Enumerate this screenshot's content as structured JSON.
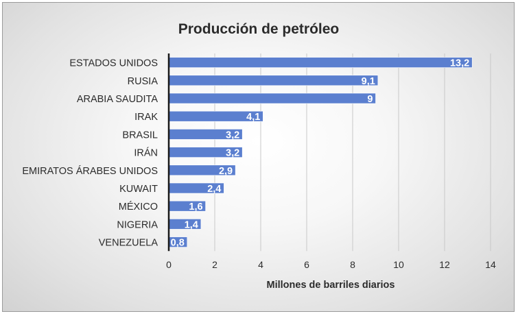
{
  "chart_data": {
    "type": "bar",
    "orientation": "horizontal",
    "title": "Producción de petróleo",
    "xlabel": "Millones de barriles diarios",
    "ylabel": "",
    "categories": [
      "ESTADOS UNIDOS",
      "RUSIA",
      "ARABIA SAUDITA",
      "IRAK",
      "BRASIL",
      "IRÁN",
      "EMIRATOS ÁRABES UNIDOS",
      "KUWAIT",
      "MÉXICO",
      "NIGERIA",
      "VENEZUELA"
    ],
    "values": [
      13.2,
      9.1,
      9,
      4.1,
      3.2,
      3.2,
      2.9,
      2.4,
      1.6,
      1.4,
      0.8
    ],
    "data_labels": [
      "13,2",
      "9,1",
      "9",
      "4,1",
      "3,2",
      "3,2",
      "2,9",
      "2,4",
      "1,6",
      "1,4",
      "0,8"
    ],
    "x_ticks": [
      "0",
      "2",
      "4",
      "6",
      "8",
      "10",
      "12",
      "14"
    ],
    "xlim": [
      0,
      14
    ],
    "grid": true,
    "legend": "none",
    "colors": {
      "bar": "#5b7fcf",
      "bar_edge": "#ffffff",
      "grid": "#c8c8c8",
      "axis": "#1a1a1a",
      "text": "#2b2b2b",
      "label": "#ffffff"
    }
  }
}
